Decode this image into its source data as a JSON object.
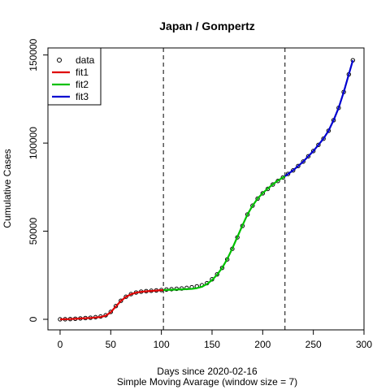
{
  "chart_data": {
    "type": "scatter",
    "title": "Japan / Gompertz",
    "xlabel": "Days since 2020-02-16",
    "subtitle": "Simple Moving Avarage (window size = 7)",
    "ylabel": "Cumulative Cases",
    "xlim": [
      -12,
      300
    ],
    "ylim": [
      -6000,
      154000
    ],
    "xticks": [
      0,
      50,
      100,
      150,
      200,
      250,
      300
    ],
    "xtick_labels": [
      "0",
      "50",
      "100",
      "150",
      "200",
      "250",
      "300"
    ],
    "yticks": [
      0,
      50000,
      100000,
      150000
    ],
    "ytick_labels": [
      "0",
      "50000",
      "100000",
      "150000"
    ],
    "vlines": [
      102,
      222
    ],
    "grid": false,
    "legend": {
      "position": "top-left",
      "entries": [
        {
          "label": "data",
          "style": "point",
          "color": "#000000"
        },
        {
          "label": "fit1",
          "style": "line",
          "color": "#df0000"
        },
        {
          "label": "fit2",
          "style": "line",
          "color": "#00c000"
        },
        {
          "label": "fit3",
          "style": "line",
          "color": "#0000d0"
        }
      ]
    },
    "series": [
      {
        "name": "data",
        "style": "points",
        "color": "#000000",
        "x": [
          0,
          5,
          10,
          15,
          20,
          25,
          30,
          35,
          40,
          45,
          50,
          55,
          60,
          65,
          70,
          75,
          80,
          85,
          90,
          95,
          100,
          105,
          110,
          115,
          120,
          125,
          130,
          135,
          140,
          145,
          150,
          155,
          160,
          165,
          170,
          175,
          180,
          185,
          190,
          195,
          200,
          205,
          210,
          215,
          220,
          225,
          230,
          235,
          240,
          245,
          250,
          255,
          260,
          265,
          270,
          275,
          280,
          285,
          289
        ],
        "y": [
          0,
          50,
          150,
          300,
          500,
          700,
          900,
          1200,
          1600,
          2300,
          4200,
          7500,
          10500,
          12800,
          14300,
          15200,
          15700,
          16000,
          16200,
          16400,
          16600,
          16900,
          17100,
          17300,
          17500,
          17800,
          18200,
          18700,
          19300,
          20500,
          22700,
          25500,
          29200,
          34000,
          40000,
          46500,
          53000,
          59500,
          64500,
          68500,
          71500,
          74000,
          76500,
          78500,
          80500,
          82500,
          84500,
          87000,
          89500,
          92500,
          95500,
          99000,
          102500,
          107000,
          113000,
          120000,
          129000,
          139000,
          147000
        ]
      },
      {
        "name": "fit1",
        "style": "line",
        "color": "#df0000",
        "x": [
          0,
          10,
          20,
          30,
          40,
          45,
          50,
          55,
          60,
          65,
          70,
          75,
          80,
          85,
          90,
          95,
          102
        ],
        "y": [
          0,
          150,
          450,
          800,
          1300,
          2000,
          4000,
          7300,
          10400,
          12700,
          14200,
          15100,
          15600,
          15900,
          16100,
          16300,
          16600
        ]
      },
      {
        "name": "fit2",
        "style": "line",
        "color": "#00c000",
        "x": [
          102,
          110,
          120,
          130,
          135,
          140,
          145,
          150,
          155,
          160,
          165,
          170,
          175,
          180,
          185,
          190,
          195,
          200,
          205,
          210,
          215,
          222
        ],
        "y": [
          16600,
          16800,
          17000,
          17300,
          17700,
          18500,
          20000,
          22300,
          25300,
          29200,
          34200,
          40200,
          46800,
          53300,
          59500,
          64500,
          68500,
          71600,
          74200,
          76600,
          78700,
          81200
        ]
      },
      {
        "name": "fit3",
        "style": "line",
        "color": "#0000d0",
        "x": [
          222,
          225,
          230,
          235,
          240,
          245,
          250,
          255,
          260,
          265,
          270,
          275,
          280,
          285,
          289
        ],
        "y": [
          81200,
          82500,
          84500,
          87000,
          89500,
          92500,
          95500,
          99000,
          102500,
          107000,
          113000,
          120000,
          129000,
          139000,
          147000
        ]
      }
    ]
  }
}
